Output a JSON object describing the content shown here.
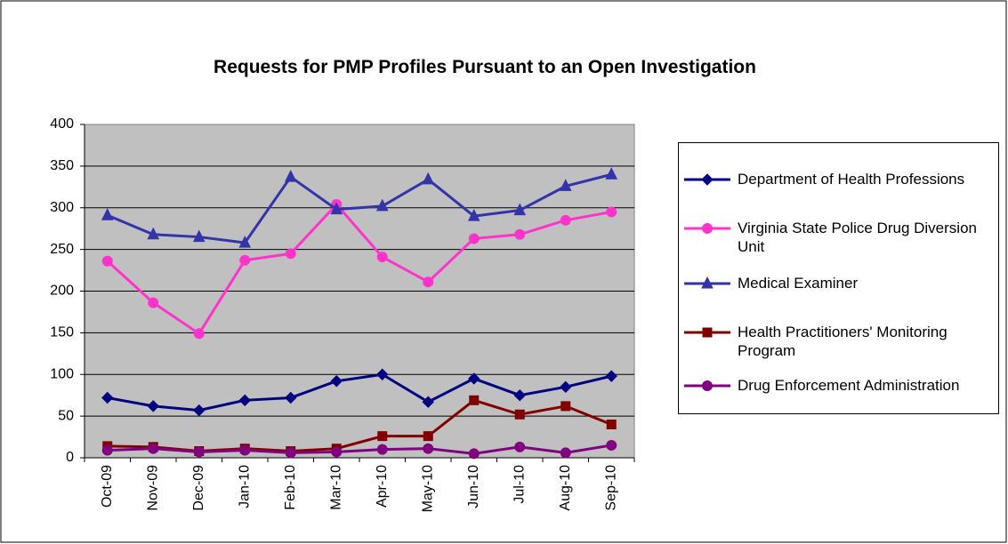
{
  "chart_data": {
    "type": "line",
    "title": "Requests for PMP Profiles Pursuant to an Open Investigation",
    "categories": [
      "Oct-09",
      "Nov-09",
      "Dec-09",
      "Jan-10",
      "Feb-10",
      "Mar-10",
      "Apr-10",
      "May-10",
      "Jun-10",
      "Jul-10",
      "Aug-10",
      "Sep-10"
    ],
    "series": [
      {
        "name": "Department of Health Professions",
        "color": "#000080",
        "marker": "diamond",
        "values": [
          72,
          62,
          57,
          69,
          72,
          92,
          100,
          67,
          95,
          75,
          85,
          98
        ]
      },
      {
        "name": "Virginia State Police Drug Diversion Unit",
        "color": "#ff33cc",
        "marker": "circle",
        "values": [
          236,
          186,
          149,
          237,
          245,
          304,
          241,
          211,
          263,
          268,
          285,
          295
        ]
      },
      {
        "name": "Medical Examiner",
        "color": "#3333aa",
        "marker": "triangle",
        "values": [
          291,
          268,
          265,
          258,
          337,
          298,
          302,
          334,
          290,
          297,
          326,
          340
        ]
      },
      {
        "name": "Health Practitioners' Monitoring Program",
        "color": "#800000",
        "marker": "square",
        "values": [
          14,
          13,
          8,
          11,
          8,
          11,
          26,
          26,
          69,
          52,
          62,
          40
        ]
      },
      {
        "name": "Drug Enforcement Administration",
        "color": "#800080",
        "marker": "circle",
        "values": [
          9,
          11,
          7,
          9,
          6,
          7,
          10,
          11,
          5,
          13,
          6,
          15
        ]
      }
    ],
    "ylim": [
      0,
      400
    ],
    "yticks": [
      0,
      50,
      100,
      150,
      200,
      250,
      300,
      350,
      400
    ],
    "grid": true,
    "legend": "right"
  }
}
